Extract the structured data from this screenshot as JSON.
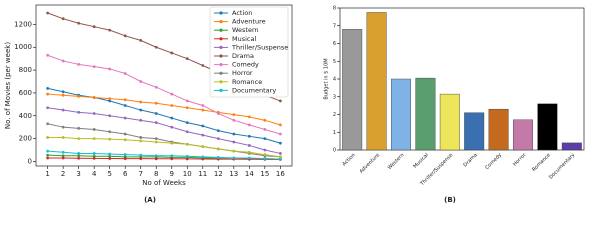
{
  "chart_data": [
    {
      "type": "line",
      "caption": "(A)",
      "xlabel": "No of Weeks",
      "ylabel": "No. of Movies (per week)",
      "x": [
        1,
        2,
        3,
        4,
        5,
        6,
        7,
        8,
        9,
        10,
        11,
        12,
        13,
        14,
        15,
        16
      ],
      "xlim": [
        0.25,
        16.75
      ],
      "xticks": [
        1,
        2,
        3,
        4,
        5,
        6,
        7,
        8,
        9,
        10,
        11,
        12,
        13,
        14,
        15,
        16
      ],
      "ylim": [
        -40,
        1370
      ],
      "yticks": [
        0,
        200,
        400,
        600,
        800,
        1000,
        1200
      ],
      "legend": "upper right",
      "series": [
        {
          "name": "Action",
          "color": "#1f77b4",
          "values": [
            640,
            610,
            580,
            560,
            530,
            490,
            450,
            420,
            380,
            340,
            310,
            270,
            240,
            220,
            200,
            160
          ]
        },
        {
          "name": "Adventure",
          "color": "#ff7f0e",
          "values": [
            590,
            580,
            570,
            560,
            550,
            540,
            520,
            510,
            490,
            470,
            450,
            430,
            410,
            390,
            360,
            320
          ]
        },
        {
          "name": "Western",
          "color": "#2ca02c",
          "values": [
            55,
            50,
            50,
            45,
            45,
            40,
            40,
            40,
            35,
            35,
            30,
            30,
            30,
            25,
            25,
            20
          ]
        },
        {
          "name": "Musical",
          "color": "#d62728",
          "values": [
            30,
            30,
            28,
            27,
            26,
            25,
            25,
            24,
            23,
            22,
            21,
            20,
            20,
            19,
            18,
            17
          ]
        },
        {
          "name": "Thriller/Suspense",
          "color": "#9467bd",
          "values": [
            470,
            450,
            430,
            420,
            400,
            380,
            360,
            340,
            300,
            260,
            230,
            200,
            170,
            140,
            100,
            70
          ]
        },
        {
          "name": "Drama",
          "color": "#8c564b",
          "values": [
            1300,
            1250,
            1210,
            1180,
            1150,
            1100,
            1060,
            1000,
            950,
            900,
            840,
            780,
            700,
            640,
            580,
            530
          ]
        },
        {
          "name": "Comedy",
          "color": "#e377c2",
          "values": [
            930,
            880,
            850,
            830,
            810,
            770,
            700,
            650,
            590,
            530,
            490,
            420,
            360,
            320,
            280,
            240
          ]
        },
        {
          "name": "Horror",
          "color": "#7f7f7f",
          "values": [
            330,
            300,
            290,
            280,
            260,
            240,
            210,
            200,
            170,
            150,
            130,
            110,
            90,
            70,
            50,
            40
          ]
        },
        {
          "name": "Romance",
          "color": "#bcbd22",
          "values": [
            210,
            210,
            200,
            200,
            195,
            190,
            180,
            170,
            160,
            150,
            130,
            110,
            90,
            80,
            60,
            40
          ]
        },
        {
          "name": "Documentary",
          "color": "#17becf",
          "values": [
            90,
            80,
            70,
            70,
            65,
            60,
            55,
            50,
            50,
            45,
            40,
            35,
            30,
            30,
            25,
            20
          ]
        }
      ]
    },
    {
      "type": "bar",
      "caption": "(B)",
      "ylabel": "Budget in $ 10M",
      "categories": [
        "Action",
        "Adventure",
        "Western",
        "Musical",
        "Thriller/Suspense",
        "Drama",
        "Comedy",
        "Horror",
        "Romance",
        "Documentary"
      ],
      "values": [
        6.8,
        7.75,
        4.0,
        4.05,
        3.15,
        2.1,
        2.3,
        1.7,
        2.6,
        0.4
      ],
      "colors": [
        "#999999",
        "#d9a030",
        "#7fb2e5",
        "#5a9e6e",
        "#ede55a",
        "#3a6fb0",
        "#c46a1e",
        "#c47aa8",
        "#000000",
        "#5b3ea8"
      ],
      "ylim": [
        0,
        8
      ],
      "yticks": [
        0,
        1,
        2,
        3,
        4,
        5,
        6,
        7,
        8
      ]
    }
  ]
}
